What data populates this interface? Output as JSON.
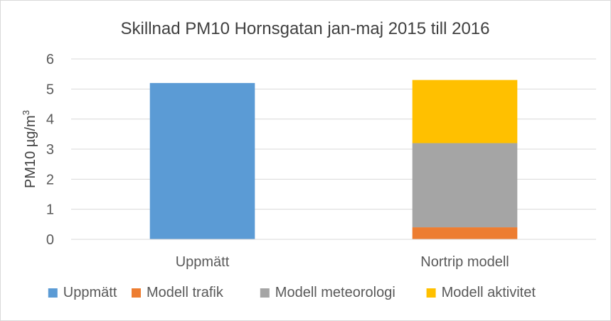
{
  "chart_data": {
    "type": "bar",
    "stacked": true,
    "title": "Skillnad PM10 Hornsgatan jan-maj 2015 till 2016",
    "xlabel": "",
    "ylabel_main": "PM10 µg/m",
    "ylabel_sup": "3",
    "ylim": [
      0,
      6
    ],
    "yticks": [
      0,
      1,
      2,
      3,
      4,
      5,
      6
    ],
    "grid": true,
    "legend_position": "bottom",
    "categories": [
      "Uppmätt",
      "Nortrip modell"
    ],
    "series": [
      {
        "name": "Uppmätt",
        "color": "#5b9bd5",
        "values": [
          5.2,
          0
        ]
      },
      {
        "name": "Modell trafik",
        "color": "#ed7d31",
        "values": [
          0,
          0.4
        ]
      },
      {
        "name": "Modell meteorologi",
        "color": "#a5a5a5",
        "values": [
          0,
          2.8
        ]
      },
      {
        "name": "Modell aktivitet",
        "color": "#ffc000",
        "values": [
          0,
          2.1
        ]
      }
    ]
  }
}
